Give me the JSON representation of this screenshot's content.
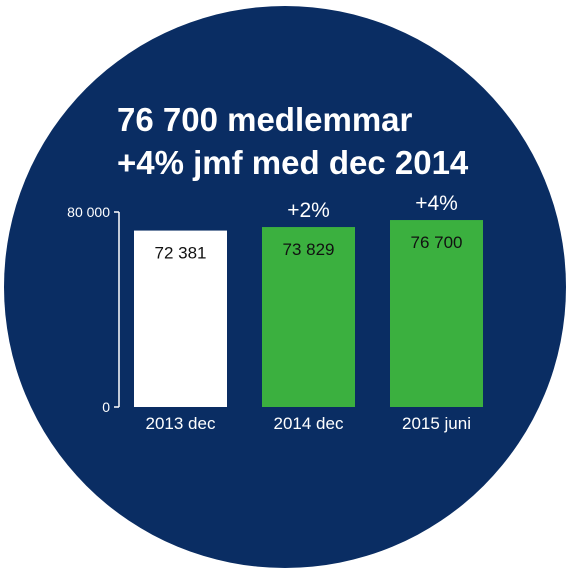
{
  "colors": {
    "circle": "#0a2d63",
    "bar_base": "#ffffff",
    "bar_growth": "#3bb03f",
    "text_light": "#ffffff",
    "text_dark": "#111111",
    "axis": "#ffffff"
  },
  "headline": {
    "line1": "76 700 medlemmar",
    "line2": "+4% jmf med dec 2014"
  },
  "chart_data": {
    "type": "bar",
    "categories": [
      "2013 dec",
      "2014 dec",
      "2015 juni"
    ],
    "values": [
      72381,
      73829,
      76700
    ],
    "value_labels": [
      "72 381",
      "73 829",
      "76 700"
    ],
    "change_labels": [
      "",
      "+2%",
      "+4%"
    ],
    "bar_colors": [
      "#ffffff",
      "#3bb03f",
      "#3bb03f"
    ],
    "ylim": [
      0,
      80000
    ],
    "ytick_labels": [
      "0",
      "80 000"
    ],
    "xlabel": "",
    "ylabel": "",
    "grid": false,
    "legend": "none"
  }
}
